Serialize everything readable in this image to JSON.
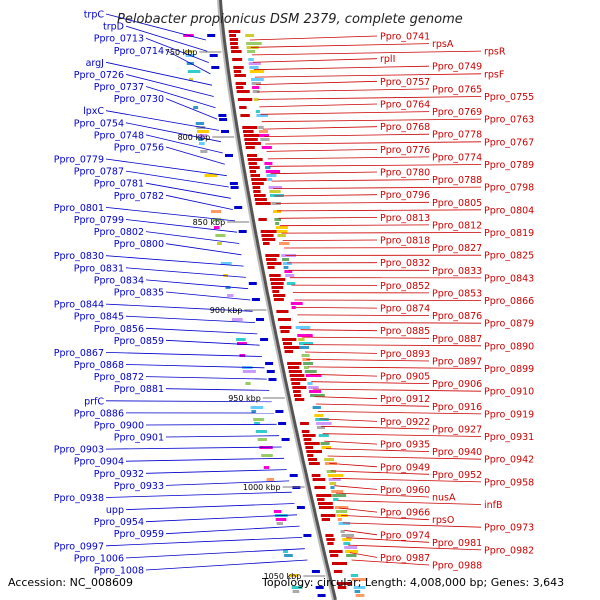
{
  "title": "Pelobacter propionicus DSM 2379, complete genome",
  "accession": "Accession: NC_008609",
  "summary": "Topology: circular; Length: 4,008,000 bp; Genes: 3,643",
  "colors": {
    "forward": "#cc0000",
    "reverse": "#0000cc",
    "backbone": "#888888"
  },
  "ticks": [
    "750 kbp",
    "800 kbp",
    "850 kbp",
    "900 kbp",
    "950 kbp",
    "1000 kbp",
    "1050 kbp"
  ],
  "left_labels": [
    "trpC",
    "trpD",
    "Ppro_0713",
    "Ppro_0714",
    "argJ",
    "Ppro_0726",
    "Ppro_0737",
    "Ppro_0730",
    "lpxC",
    "Ppro_0754",
    "Ppro_0748",
    "Ppro_0756",
    "Ppro_0779",
    "Ppro_0787",
    "Ppro_0781",
    "Ppro_0782",
    "Ppro_0801",
    "Ppro_0799",
    "Ppro_0802",
    "Ppro_0800",
    "Ppro_0830",
    "Ppro_0831",
    "Ppro_0834",
    "Ppro_0835",
    "Ppro_0844",
    "Ppro_0845",
    "Ppro_0856",
    "Ppro_0859",
    "Ppro_0867",
    "Ppro_0868",
    "Ppro_0872",
    "Ppro_0881",
    "prfC",
    "Ppro_0886",
    "Ppro_0900",
    "Ppro_0901",
    "Ppro_0903",
    "Ppro_0904",
    "Ppro_0932",
    "Ppro_0933",
    "Ppro_0938",
    "upp",
    "Ppro_0954",
    "Ppro_0959",
    "Ppro_0997",
    "Ppro_1006",
    "Ppro_1008"
  ],
  "right_labels": [
    "Ppro_0741",
    "rpsA",
    "rpsR",
    "rplI",
    "Ppro_0749",
    "rpsF",
    "Ppro_0757",
    "Ppro_0765",
    "Ppro_0755",
    "Ppro_0764",
    "Ppro_0769",
    "Ppro_0763",
    "Ppro_0768",
    "Ppro_0778",
    "Ppro_0767",
    "Ppro_0776",
    "Ppro_0774",
    "Ppro_0789",
    "Ppro_0780",
    "Ppro_0788",
    "Ppro_0798",
    "Ppro_0796",
    "Ppro_0805",
    "Ppro_0804",
    "Ppro_0813",
    "Ppro_0812",
    "Ppro_0819",
    "Ppro_0818",
    "Ppro_0827",
    "Ppro_0825",
    "Ppro_0832",
    "Ppro_0833",
    "Ppro_0843",
    "Ppro_0852",
    "Ppro_0853",
    "Ppro_0866",
    "Ppro_0874",
    "Ppro_0876",
    "Ppro_0879",
    "Ppro_0885",
    "Ppro_0887",
    "Ppro_0890",
    "Ppro_0893",
    "Ppro_0897",
    "Ppro_0899",
    "Ppro_0905",
    "Ppro_0906",
    "Ppro_0910",
    "Ppro_0912",
    "Ppro_0916",
    "Ppro_0919",
    "Ppro_0922",
    "Ppro_0927",
    "Ppro_0931",
    "Ppro_0935",
    "Ppro_0940",
    "Ppro_0942",
    "Ppro_0949",
    "Ppro_0952",
    "Ppro_0958",
    "Ppro_0960",
    "nusA",
    "infB",
    "Ppro_0966",
    "rpsO",
    "Ppro_0973",
    "Ppro_0974",
    "Ppro_0981",
    "Ppro_0982",
    "Ppro_0987",
    "Ppro_0988"
  ]
}
